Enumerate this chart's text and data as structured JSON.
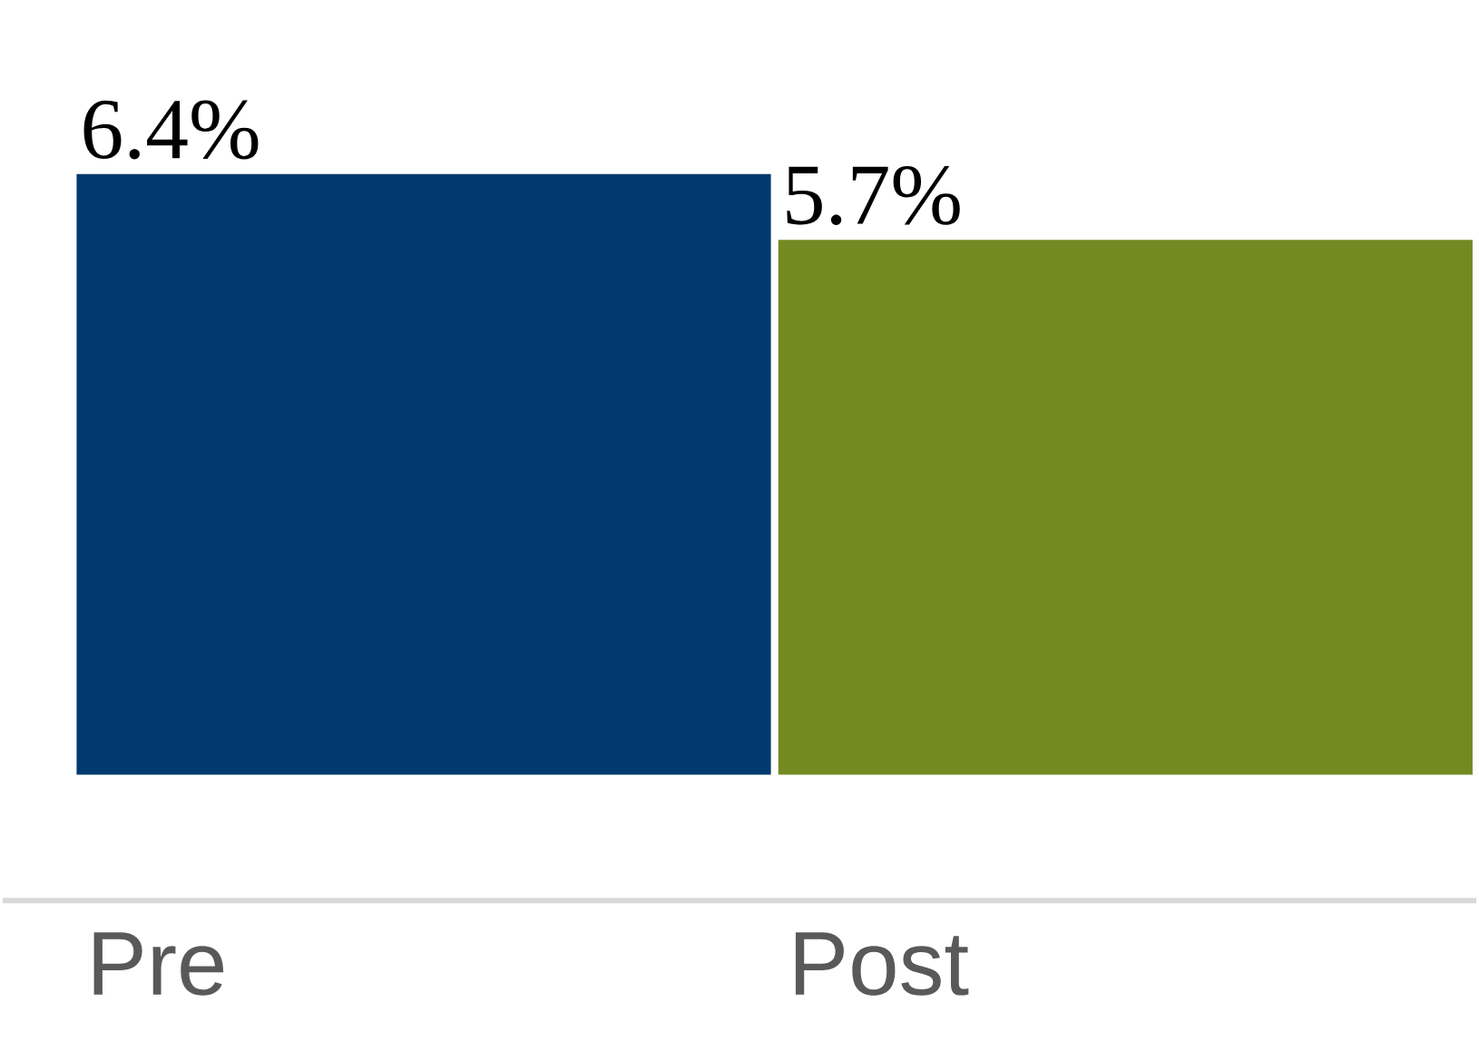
{
  "chart_data": {
    "type": "bar",
    "categories": [
      "Pre",
      "Post"
    ],
    "values": [
      6.4,
      5.7
    ],
    "colors": [
      "#003a6e",
      "#738a22"
    ],
    "value_labels": [
      "6.4%",
      "5.7%"
    ]
  }
}
